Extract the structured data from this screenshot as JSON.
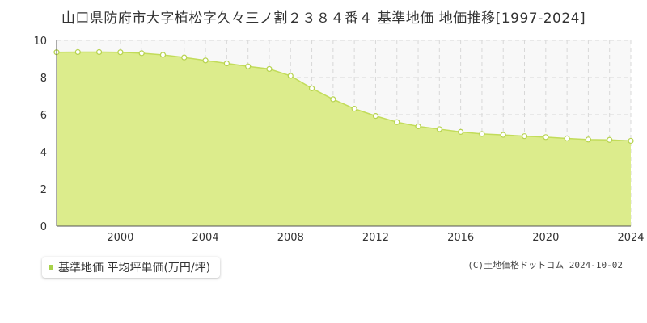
{
  "title": "山口県防府市大字植松字久々三ノ割２３８４番４ 基準地価 地価推移[1997-2024]",
  "legend_label": "基準地価 平均坪単価(万円/坪)",
  "credit": "(C)土地価格ドットコム 2024-10-02",
  "colors": {
    "area_fill": "#dcec8c",
    "line": "#c2dc5a",
    "marker_stroke": "#b6d24e",
    "legend_marker": "#a8d24a",
    "upper_bg": "#f8f8f8",
    "grid": "#d8d8d8",
    "axis_text": "#333333"
  },
  "chart_data": {
    "type": "area",
    "series": [
      {
        "x": [
          1997,
          1998,
          1999,
          2000,
          2001,
          2002,
          2003,
          2004,
          2005,
          2006,
          2007,
          2008,
          2009,
          2010,
          2011,
          2012,
          2013,
          2014,
          2015,
          2016,
          2017,
          2018,
          2019,
          2020,
          2021,
          2022,
          2023,
          2024
        ],
        "values": [
          9.36,
          9.37,
          9.37,
          9.36,
          9.31,
          9.22,
          9.08,
          8.92,
          8.76,
          8.6,
          8.46,
          8.09,
          7.42,
          6.83,
          6.32,
          5.93,
          5.6,
          5.37,
          5.22,
          5.07,
          4.96,
          4.91,
          4.84,
          4.79,
          4.72,
          4.66,
          4.64,
          4.59
        ]
      }
    ],
    "xlim": [
      1997,
      2024
    ],
    "ylim": [
      0,
      10
    ],
    "x_ticks": [
      2000,
      2004,
      2008,
      2012,
      2016,
      2020,
      2024
    ],
    "y_ticks": [
      0,
      2,
      4,
      6,
      8,
      10
    ],
    "grid": true
  }
}
